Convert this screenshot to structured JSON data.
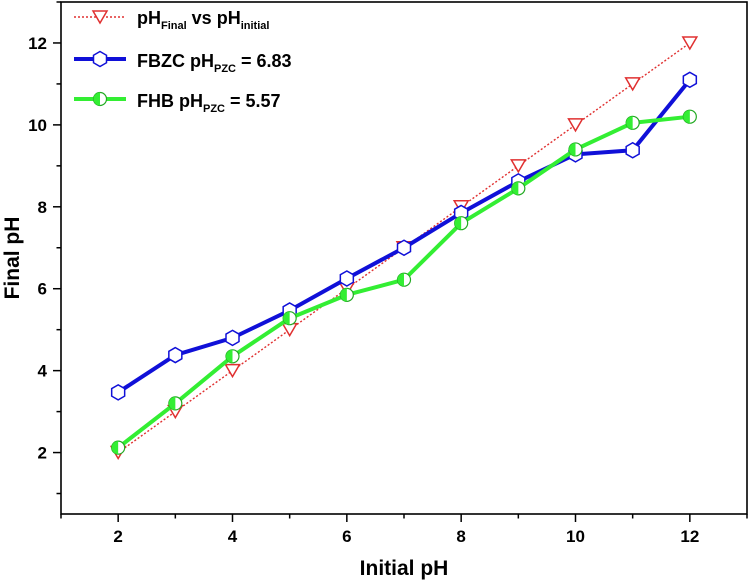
{
  "chart_data": {
    "type": "line",
    "xlabel": "Initial pH",
    "ylabel": "Final pH",
    "xlim": [
      1,
      13
    ],
    "ylim": [
      0.5,
      13
    ],
    "xticks": [
      2,
      4,
      6,
      8,
      10,
      12
    ],
    "yticks": [
      2,
      4,
      6,
      8,
      10,
      12
    ],
    "x_tick_labels": [
      "2",
      "4",
      "6",
      "8",
      "10",
      "12"
    ],
    "y_tick_labels": [
      "2",
      "4",
      "6",
      "8",
      "10",
      "12"
    ],
    "legend_position": "top-left",
    "series": [
      {
        "key": "ref",
        "name": "pHFinal vs pHinitial",
        "legend_main": "pH",
        "legend_sub1": "Final",
        "legend_mid": " vs pH",
        "legend_sub2": "initial",
        "color": "#e03030",
        "marker": "triangle-down",
        "style": "dotted",
        "x": [
          2,
          3,
          4,
          5,
          6,
          7,
          8,
          9,
          10,
          11,
          12
        ],
        "y": [
          2,
          3,
          4,
          5,
          6,
          7,
          8,
          9,
          10,
          11,
          12
        ]
      },
      {
        "key": "fbzc",
        "name": "FBZC pHPZC = 6.83",
        "legend_main": "FBZC pH",
        "legend_sub1": "PZC",
        "legend_mid": " = 6.83",
        "color": "#1010d8",
        "marker": "hexagon",
        "style": "solid",
        "x": [
          2,
          3,
          4,
          5,
          6,
          7,
          8,
          9,
          10,
          11,
          12
        ],
        "y": [
          3.47,
          4.38,
          4.8,
          5.47,
          6.25,
          7.0,
          7.85,
          8.62,
          9.28,
          9.38,
          11.1
        ]
      },
      {
        "key": "fhb",
        "name": "FHB pHPZC = 5.57",
        "legend_main": "FHB pH",
        "legend_sub1": "PZC",
        "legend_mid": " = 5.57",
        "color": "#33ee33",
        "marker": "half-circle",
        "style": "solid",
        "x": [
          2,
          3,
          4,
          5,
          6,
          7,
          8,
          9,
          10,
          11,
          12
        ],
        "y": [
          2.12,
          3.2,
          4.35,
          5.28,
          5.85,
          6.22,
          7.6,
          8.45,
          9.4,
          10.05,
          10.2
        ]
      }
    ]
  }
}
